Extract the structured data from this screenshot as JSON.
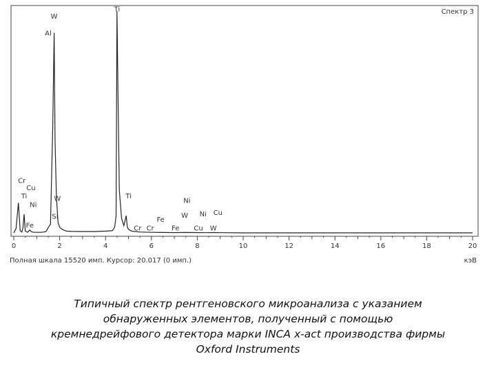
{
  "spectrum_title": "Спектр 3",
  "status": {
    "text": "Полная шкала 15520 имп. Курсор: 20.017 (0 имп.)",
    "unit": "кэВ"
  },
  "caption": [
    "Типичный спектр рентгеновского микроанализа с указанием",
    "обнаруженных элементов, полученный с помощью",
    "кремнедрейфового детектора марки INCA x-act производства фирмы",
    "Oxford Instruments"
  ],
  "chart_data": {
    "type": "line",
    "title": "Спектр 3",
    "xlabel": "кэВ",
    "ylabel": "",
    "xlim": [
      0,
      20
    ],
    "ylim": [
      0,
      15520
    ],
    "x_ticks": [
      0,
      2,
      4,
      6,
      8,
      10,
      12,
      14,
      16,
      18,
      20
    ],
    "grid": false,
    "series": [
      {
        "points": [
          [
            0,
            0
          ],
          [
            0.1,
            300
          ],
          [
            0.2,
            2100
          ],
          [
            0.28,
            150
          ],
          [
            0.35,
            60
          ],
          [
            0.4,
            350
          ],
          [
            0.45,
            1300
          ],
          [
            0.5,
            120
          ],
          [
            0.6,
            40
          ],
          [
            0.7,
            200
          ],
          [
            0.76,
            90
          ],
          [
            0.85,
            40
          ],
          [
            1.0,
            40
          ],
          [
            1.2,
            40
          ],
          [
            1.4,
            80
          ],
          [
            1.5,
            350
          ],
          [
            1.6,
            600
          ],
          [
            1.7,
            7500
          ],
          [
            1.76,
            14000
          ],
          [
            1.8,
            6500
          ],
          [
            1.86,
            2500
          ],
          [
            1.93,
            700
          ],
          [
            2.0,
            400
          ],
          [
            2.1,
            250
          ],
          [
            2.2,
            180
          ],
          [
            2.3,
            120
          ],
          [
            2.5,
            100
          ],
          [
            3.0,
            90
          ],
          [
            3.5,
            90
          ],
          [
            4.0,
            120
          ],
          [
            4.3,
            150
          ],
          [
            4.4,
            400
          ],
          [
            4.46,
            1200
          ],
          [
            4.5,
            15520
          ],
          [
            4.55,
            9000
          ],
          [
            4.6,
            3000
          ],
          [
            4.7,
            1000
          ],
          [
            4.8,
            500
          ],
          [
            4.9,
            1200
          ],
          [
            4.95,
            400
          ],
          [
            5.0,
            250
          ],
          [
            5.1,
            150
          ],
          [
            5.2,
            100
          ],
          [
            5.5,
            60
          ],
          [
            6.0,
            40
          ],
          [
            6.4,
            30
          ],
          [
            7.0,
            20
          ],
          [
            7.5,
            30
          ],
          [
            8.0,
            20
          ],
          [
            8.4,
            15
          ],
          [
            8.7,
            25
          ],
          [
            9.0,
            15
          ],
          [
            10.0,
            0
          ],
          [
            20.0,
            0
          ]
        ]
      }
    ],
    "annotations": [
      {
        "text": "W",
        "x": 1.76,
        "y": 15000
      },
      {
        "text": "Al",
        "x": 1.5,
        "y": 13800
      },
      {
        "text": "Ti",
        "x": 4.5,
        "y": 15500
      },
      {
        "text": "Cr",
        "x": 0.35,
        "y": 3500
      },
      {
        "text": "Cu",
        "x": 0.75,
        "y": 3000
      },
      {
        "text": "Ti",
        "x": 0.45,
        "y": 2400
      },
      {
        "text": "Ni",
        "x": 0.85,
        "y": 1800
      },
      {
        "text": "W",
        "x": 1.9,
        "y": 2250
      },
      {
        "text": "Si",
        "x": 1.8,
        "y": 1000
      },
      {
        "text": "Fe",
        "x": 0.7,
        "y": 350
      },
      {
        "text": "Ti",
        "x": 5.0,
        "y": 2400
      },
      {
        "text": "Cr",
        "x": 5.4,
        "y": 160
      },
      {
        "text": "Cr",
        "x": 5.95,
        "y": 160
      },
      {
        "text": "Fe",
        "x": 6.4,
        "y": 780
      },
      {
        "text": "Fe",
        "x": 7.05,
        "y": 160
      },
      {
        "text": "Ni",
        "x": 7.55,
        "y": 2100
      },
      {
        "text": "W",
        "x": 7.45,
        "y": 1070
      },
      {
        "text": "Ni",
        "x": 8.25,
        "y": 1150
      },
      {
        "text": "Cu",
        "x": 8.9,
        "y": 1260
      },
      {
        "text": "Cu",
        "x": 8.05,
        "y": 160
      },
      {
        "text": "W",
        "x": 8.7,
        "y": 160
      }
    ]
  }
}
